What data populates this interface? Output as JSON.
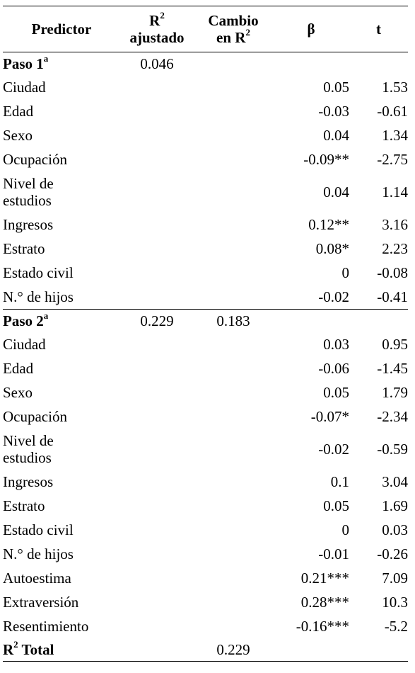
{
  "header": {
    "predictor": "Predictor",
    "r2_main": "R",
    "r2_sup": "2",
    "r2_sub": "ajustado",
    "cambio_line1": "Cambio",
    "cambio_line2": "en R",
    "cambio_sup": "2",
    "beta": "β",
    "t": "t"
  },
  "step1": {
    "label": "Paso 1",
    "sup": "a",
    "r2": "0.046",
    "rows": [
      {
        "name": "Ciudad",
        "beta": "0.05",
        "t": "1.53"
      },
      {
        "name": "Edad",
        "beta": "-0.03",
        "t": "-0.61"
      },
      {
        "name": "Sexo",
        "beta": "0.04",
        "t": "1.34"
      },
      {
        "name": "Ocupación",
        "beta": "-0.09**",
        "t": "-2.75"
      },
      {
        "name1": "Nivel de",
        "name2": "estudios",
        "beta": "0.04",
        "t": "1.14"
      },
      {
        "name": "Ingresos",
        "beta": "0.12**",
        "t": "3.16"
      },
      {
        "name": "Estrato",
        "beta": "0.08*",
        "t": "2.23"
      },
      {
        "name": "Estado civil",
        "beta": "0",
        "t": "-0.08"
      },
      {
        "name": "N.° de hijos",
        "beta": "-0.02",
        "t": "-0.41"
      }
    ]
  },
  "step2": {
    "label": "Paso 2",
    "sup": "a",
    "r2": "0.229",
    "cambio": "0.183",
    "rows": [
      {
        "name": "Ciudad",
        "beta": "0.03",
        "t": "0.95"
      },
      {
        "name": "Edad",
        "beta": "-0.06",
        "t": "-1.45"
      },
      {
        "name": "Sexo",
        "beta": "0.05",
        "t": "1.79"
      },
      {
        "name": "Ocupación",
        "beta": "-0.07*",
        "t": "-2.34"
      },
      {
        "name1": "Nivel de",
        "name2": "estudios",
        "beta": "-0.02",
        "t": "-0.59"
      },
      {
        "name": "Ingresos",
        "beta": "0.1",
        "t": "3.04"
      },
      {
        "name": "Estrato",
        "beta": "0.05",
        "t": "1.69"
      },
      {
        "name": "Estado civil",
        "beta": "0",
        "t": "0.03"
      },
      {
        "name": "N.° de hijos",
        "beta": "-0.01",
        "t": "-0.26"
      },
      {
        "name": "Autoestima",
        "beta": "0.21***",
        "t": "7.09"
      },
      {
        "name": "Extraversión",
        "beta": "0.28***",
        "t": "10.3"
      },
      {
        "name": "Resentimiento",
        "beta": "-0.16***",
        "t": "-5.2"
      }
    ]
  },
  "total": {
    "label": "R",
    "sup": "2",
    "label_rest": " Total",
    "cambio": "0.229"
  }
}
